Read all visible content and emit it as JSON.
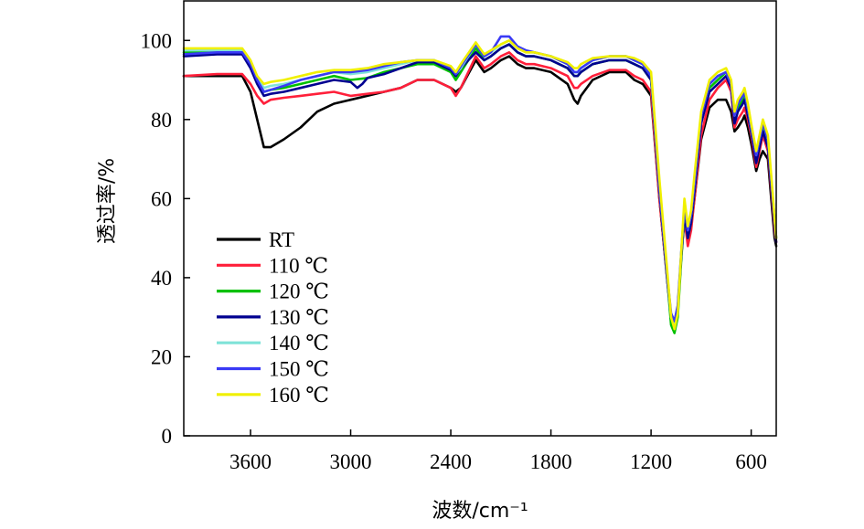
{
  "chart_data": {
    "type": "line",
    "title": "",
    "xlabel": "波数/cm⁻¹",
    "ylabel": "透过率/%",
    "xlim": [
      4000,
      450
    ],
    "ylim": [
      0,
      110
    ],
    "x_reversed": true,
    "xticks": [
      3600,
      3000,
      2400,
      1800,
      1200,
      600
    ],
    "yticks": [
      0,
      20,
      40,
      60,
      80,
      100
    ],
    "grid": false,
    "legend_position": "lower-left",
    "series": [
      {
        "name": "RT",
        "color": "#000000",
        "x": [
          4000,
          3800,
          3650,
          3600,
          3560,
          3520,
          3480,
          3400,
          3300,
          3200,
          3100,
          3000,
          2900,
          2800,
          2700,
          2600,
          2500,
          2400,
          2370,
          2340,
          2250,
          2200,
          2160,
          2100,
          2050,
          2000,
          1950,
          1900,
          1800,
          1700,
          1660,
          1640,
          1620,
          1550,
          1450,
          1350,
          1300,
          1250,
          1200,
          1150,
          1100,
          1080,
          1060,
          1040,
          1020,
          1000,
          980,
          960,
          940,
          900,
          850,
          800,
          750,
          720,
          700,
          680,
          650,
          640,
          620,
          600,
          570,
          550,
          530,
          500,
          480,
          460,
          450
        ],
        "y": [
          91,
          91,
          91,
          87,
          80,
          73,
          73,
          75,
          78,
          82,
          84,
          85,
          86,
          87,
          88,
          90,
          90,
          88,
          87,
          88,
          95,
          92,
          93,
          95,
          96,
          94,
          93,
          93,
          92,
          89,
          85,
          84,
          86,
          90,
          92,
          92,
          90,
          89,
          86,
          60,
          38,
          30,
          28,
          32,
          45,
          55,
          50,
          53,
          60,
          75,
          83,
          85,
          85,
          82,
          77,
          78,
          80,
          81,
          78,
          74,
          67,
          70,
          72,
          70,
          60,
          50,
          48
        ]
      },
      {
        "name": "110 ℃",
        "color": "#ff1f3a",
        "x": [
          4000,
          3800,
          3650,
          3600,
          3560,
          3520,
          3480,
          3400,
          3300,
          3200,
          3100,
          3000,
          2900,
          2800,
          2700,
          2600,
          2500,
          2400,
          2370,
          2340,
          2250,
          2200,
          2160,
          2100,
          2050,
          2000,
          1950,
          1900,
          1800,
          1700,
          1660,
          1640,
          1620,
          1550,
          1450,
          1350,
          1300,
          1250,
          1200,
          1150,
          1100,
          1080,
          1060,
          1040,
          1020,
          1000,
          980,
          960,
          940,
          900,
          850,
          800,
          750,
          720,
          700,
          680,
          650,
          640,
          620,
          600,
          570,
          550,
          530,
          500,
          480,
          460,
          450
        ],
        "y": [
          91,
          91.5,
          91.5,
          89,
          86,
          84,
          85,
          85.5,
          86,
          86.5,
          87,
          86,
          86.5,
          87,
          88,
          90,
          90,
          88,
          86,
          88,
          96,
          93,
          94,
          96,
          97,
          95,
          94,
          94,
          93,
          91,
          88,
          88,
          89,
          91,
          92.5,
          92.5,
          91,
          90,
          87,
          60,
          38,
          30,
          28,
          32,
          45,
          55,
          48,
          52,
          60,
          76,
          85,
          88,
          90,
          87,
          78,
          80,
          82,
          83,
          80,
          76,
          68,
          72,
          76,
          72,
          62,
          52,
          49
        ]
      },
      {
        "name": "120 ℃",
        "color": "#00c000",
        "x": [
          4000,
          3800,
          3650,
          3600,
          3560,
          3520,
          3480,
          3400,
          3300,
          3200,
          3100,
          3000,
          2900,
          2800,
          2700,
          2600,
          2500,
          2400,
          2370,
          2340,
          2250,
          2200,
          2160,
          2100,
          2050,
          2000,
          1950,
          1900,
          1800,
          1700,
          1660,
          1640,
          1620,
          1550,
          1450,
          1350,
          1300,
          1250,
          1200,
          1150,
          1100,
          1080,
          1060,
          1040,
          1020,
          1000,
          980,
          960,
          940,
          900,
          850,
          800,
          750,
          720,
          700,
          680,
          650,
          640,
          620,
          600,
          570,
          550,
          530,
          500,
          480,
          460,
          450
        ],
        "y": [
          97,
          97,
          97,
          94,
          90,
          87,
          87.5,
          88,
          89,
          90,
          91,
          90,
          90.5,
          92,
          93,
          94,
          94,
          92,
          90,
          92,
          98,
          95,
          96,
          98,
          99,
          97,
          96,
          96,
          95,
          93,
          91,
          91,
          92,
          94,
          95,
          95,
          94,
          93,
          90,
          62,
          38,
          28,
          26,
          30,
          44,
          56,
          50,
          54,
          62,
          80,
          88,
          90,
          92,
          89,
          80,
          83,
          85,
          86,
          82,
          77,
          70,
          74,
          78,
          74,
          64,
          54,
          50
        ]
      },
      {
        "name": "130 ℃",
        "color": "#000090",
        "x": [
          4000,
          3800,
          3650,
          3600,
          3560,
          3520,
          3480,
          3400,
          3300,
          3200,
          3100,
          3000,
          2960,
          2930,
          2900,
          2800,
          2700,
          2600,
          2500,
          2400,
          2370,
          2340,
          2250,
          2200,
          2160,
          2100,
          2050,
          2000,
          1950,
          1900,
          1800,
          1700,
          1660,
          1640,
          1620,
          1550,
          1450,
          1350,
          1300,
          1250,
          1200,
          1150,
          1100,
          1080,
          1060,
          1040,
          1020,
          1000,
          980,
          960,
          940,
          900,
          850,
          800,
          750,
          720,
          700,
          680,
          650,
          640,
          620,
          600,
          570,
          550,
          530,
          500,
          480,
          460,
          450
        ],
        "y": [
          96,
          96.5,
          96.5,
          93,
          89,
          86,
          86.5,
          87,
          88,
          89,
          90,
          89.5,
          88,
          89,
          90.5,
          91.5,
          93,
          94.5,
          94.5,
          92.5,
          91,
          93,
          97,
          95,
          96,
          98,
          99,
          97,
          96,
          96,
          95,
          93,
          91,
          91,
          92,
          94,
          95,
          95,
          94,
          93,
          90,
          62,
          38,
          30,
          28,
          32,
          45,
          56,
          50,
          54,
          62,
          79,
          87,
          89,
          91,
          88,
          79,
          82,
          84,
          85,
          81,
          77,
          69,
          73,
          77,
          73,
          63,
          53,
          49
        ]
      },
      {
        "name": "140 ℃",
        "color": "#7fe3d8",
        "x": [
          4000,
          3800,
          3650,
          3600,
          3560,
          3520,
          3480,
          3400,
          3300,
          3200,
          3100,
          3000,
          2900,
          2800,
          2700,
          2600,
          2500,
          2400,
          2370,
          2340,
          2250,
          2200,
          2160,
          2100,
          2050,
          2000,
          1950,
          1900,
          1800,
          1700,
          1660,
          1640,
          1620,
          1550,
          1450,
          1350,
          1300,
          1250,
          1200,
          1150,
          1100,
          1080,
          1060,
          1040,
          1020,
          1000,
          980,
          960,
          940,
          900,
          850,
          800,
          750,
          720,
          700,
          680,
          650,
          640,
          620,
          600,
          570,
          550,
          530,
          500,
          480,
          460,
          450
        ],
        "y": [
          97.5,
          97.5,
          97.5,
          94.5,
          90.5,
          88,
          88.5,
          89,
          90,
          91,
          92,
          91.5,
          92,
          93,
          94,
          95,
          95,
          93,
          91.5,
          93,
          99,
          96,
          97,
          99,
          100,
          98,
          97,
          97,
          96,
          94,
          92,
          92,
          93,
          95,
          96,
          96,
          95,
          94,
          91,
          63,
          39,
          30,
          28,
          32,
          46,
          58,
          52,
          56,
          64,
          81,
          89,
          91,
          92,
          89,
          81,
          84,
          86,
          87,
          83,
          78,
          71,
          75,
          79,
          75,
          65,
          55,
          50
        ]
      },
      {
        "name": "150 ℃",
        "color": "#3a3af5",
        "x": [
          4000,
          3800,
          3650,
          3600,
          3560,
          3520,
          3480,
          3400,
          3300,
          3200,
          3100,
          3000,
          2900,
          2800,
          2700,
          2600,
          2500,
          2400,
          2370,
          2340,
          2250,
          2200,
          2160,
          2100,
          2050,
          2000,
          1950,
          1900,
          1800,
          1700,
          1660,
          1640,
          1620,
          1550,
          1450,
          1350,
          1300,
          1250,
          1200,
          1150,
          1100,
          1080,
          1060,
          1040,
          1020,
          1000,
          980,
          960,
          940,
          900,
          850,
          800,
          750,
          720,
          700,
          680,
          650,
          640,
          620,
          600,
          570,
          550,
          530,
          500,
          480,
          460,
          450
        ],
        "y": [
          96.5,
          97,
          97,
          94,
          90,
          87,
          87.5,
          88.5,
          90,
          91,
          92,
          92,
          92.5,
          93.5,
          94.5,
          95,
          95,
          93,
          91.5,
          93.5,
          99,
          96,
          97,
          101,
          101,
          98.5,
          97.5,
          97,
          96,
          94,
          92,
          92,
          93,
          95,
          96,
          96,
          95,
          94,
          91,
          63,
          39,
          31,
          29,
          33,
          46,
          58,
          52,
          56,
          64,
          81,
          89,
          91,
          92,
          89,
          81,
          84,
          86,
          87,
          83,
          78,
          71,
          75,
          79,
          75,
          65,
          55,
          50
        ]
      },
      {
        "name": "160 ℃",
        "color": "#f0f000",
        "x": [
          4000,
          3800,
          3650,
          3600,
          3560,
          3520,
          3480,
          3400,
          3300,
          3200,
          3100,
          3000,
          2900,
          2800,
          2700,
          2600,
          2500,
          2400,
          2370,
          2340,
          2250,
          2200,
          2160,
          2100,
          2050,
          2000,
          1950,
          1900,
          1800,
          1700,
          1660,
          1640,
          1620,
          1550,
          1450,
          1350,
          1300,
          1250,
          1200,
          1150,
          1100,
          1080,
          1060,
          1040,
          1020,
          1000,
          980,
          960,
          940,
          900,
          850,
          800,
          750,
          720,
          700,
          680,
          650,
          640,
          620,
          600,
          570,
          550,
          530,
          500,
          480,
          460,
          450
        ],
        "y": [
          98,
          98,
          98,
          95,
          91,
          89,
          89.5,
          90,
          91,
          92,
          92.5,
          92.5,
          93,
          94,
          94.5,
          95,
          95,
          93.5,
          92,
          94,
          99.5,
          96.5,
          97.5,
          99,
          100,
          98,
          97,
          97,
          96,
          94.5,
          93,
          93,
          94,
          95.5,
          96,
          96,
          95.5,
          94.5,
          92,
          65,
          40,
          30,
          27,
          31,
          46,
          60,
          53,
          57,
          66,
          82,
          90,
          92,
          93,
          90,
          82,
          85,
          87,
          88,
          84,
          79,
          72,
          76,
          80,
          76,
          66,
          55,
          50
        ]
      }
    ]
  }
}
